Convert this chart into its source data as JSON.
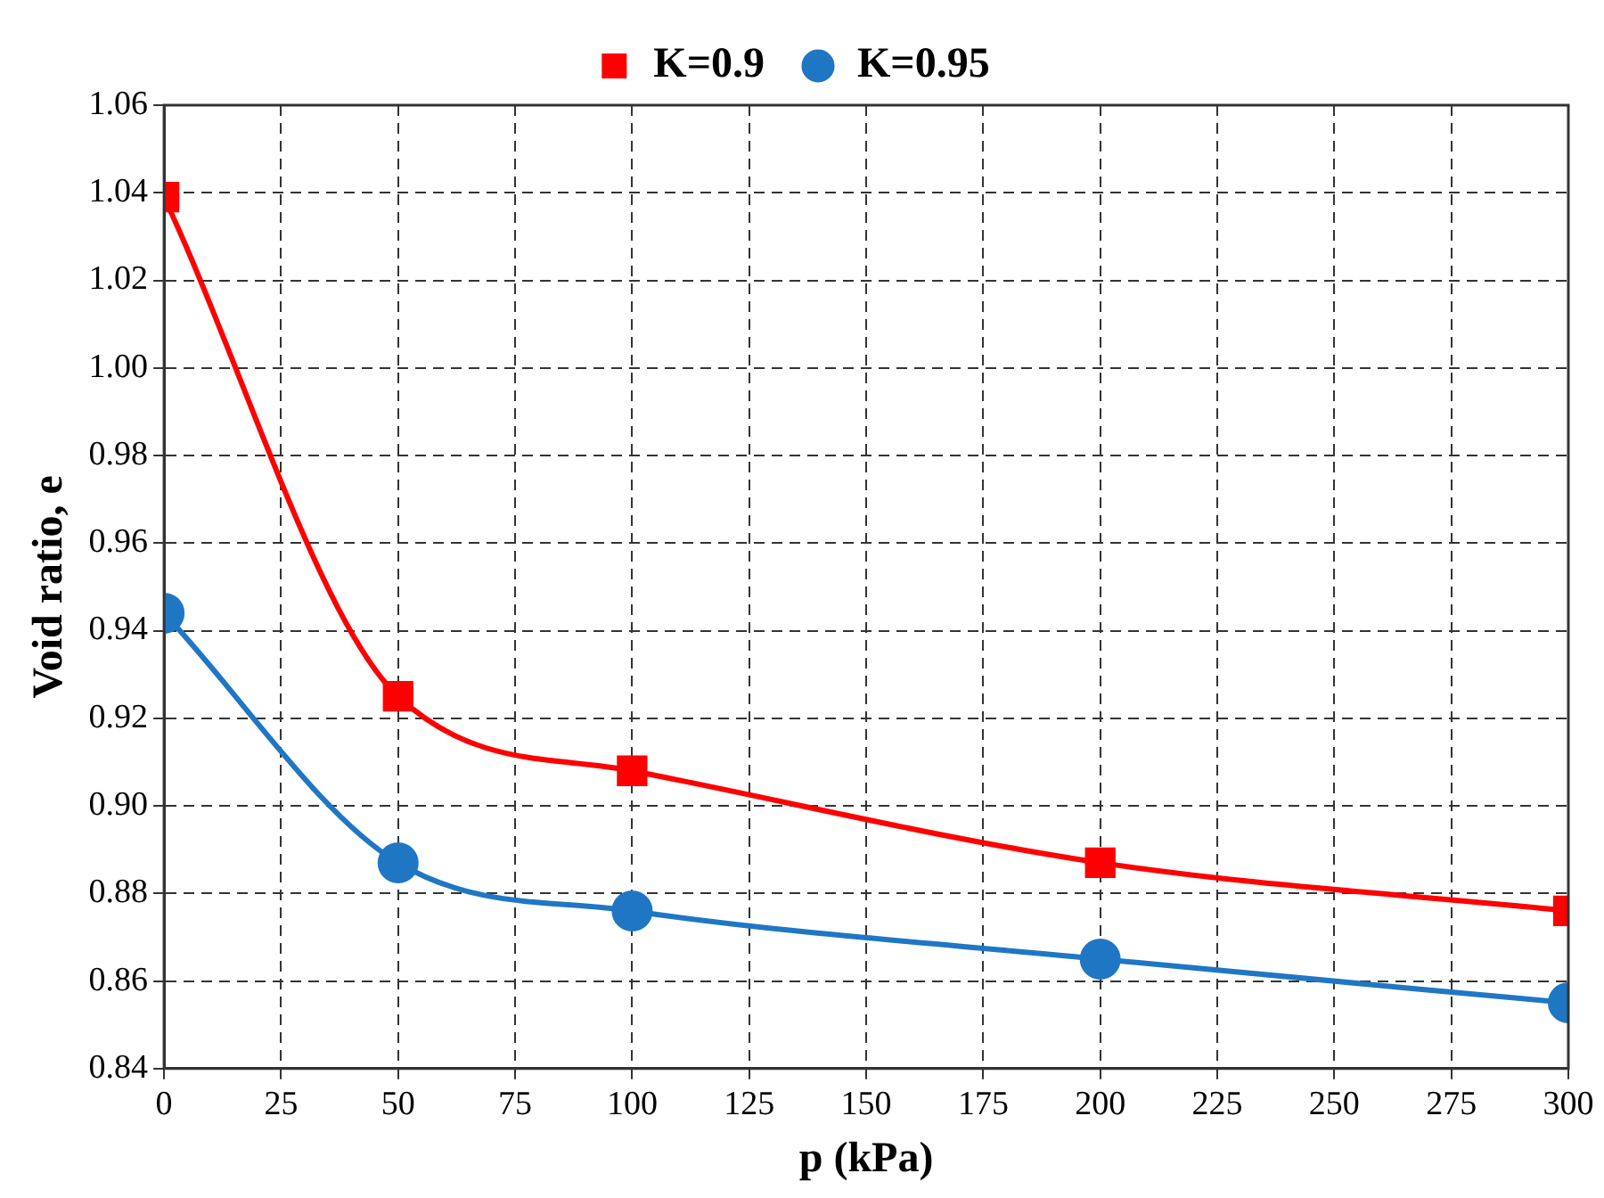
{
  "chart_data": {
    "type": "line",
    "xlabel": "p (kPa)",
    "ylabel": "Void ratio, e",
    "x": [
      0,
      50,
      100,
      200,
      300
    ],
    "series": [
      {
        "name": "K=0.9",
        "color": "#ff0000",
        "marker": "square",
        "values": [
          1.039,
          0.925,
          0.908,
          0.887,
          0.876
        ]
      },
      {
        "name": "K=0.95",
        "color": "#1f77c4",
        "marker": "circle",
        "values": [
          0.944,
          0.887,
          0.876,
          0.865,
          0.855
        ]
      }
    ],
    "xlim": [
      0,
      300
    ],
    "xticks": [
      0,
      25,
      50,
      75,
      100,
      125,
      150,
      175,
      200,
      225,
      250,
      275,
      300
    ],
    "ylim": [
      0.84,
      1.06
    ],
    "yticks": [
      0.84,
      0.86,
      0.88,
      {
        "value": 0.9,
        "label": "0.90"
      },
      0.92,
      0.94,
      0.96,
      0.98,
      {
        "value": 1,
        "label": "1.00"
      },
      1.02,
      1.04,
      1.06
    ],
    "grid": true,
    "legend": "top",
    "line_style": "solid"
  }
}
